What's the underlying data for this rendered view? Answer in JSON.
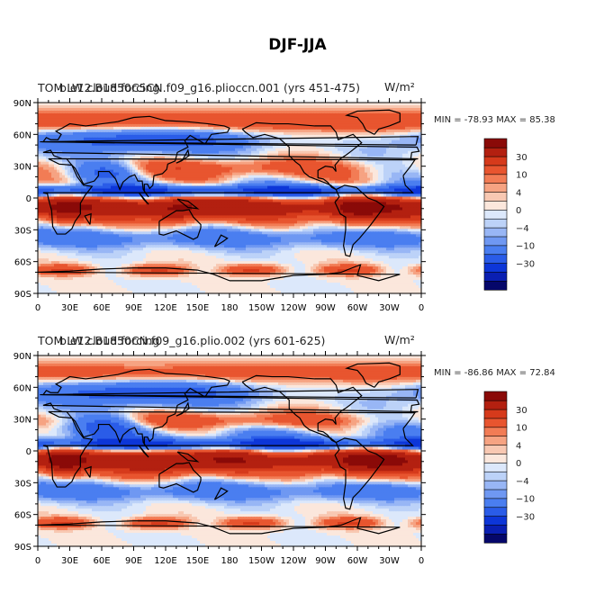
{
  "figure": {
    "title": "DJF-JJA"
  },
  "chart_data": [
    {
      "type": "heatmap",
      "title_left": "TOM LW cloud forcing",
      "title_center": "b.e12.B1850C5CN.f09_g16.plioccn.001 (yrs 451-475)",
      "units": "W/m²",
      "stats": {
        "label": "MIN = -78.93 MAX =  85.38",
        "min": -78.93,
        "max": 85.38
      },
      "colorbar": {
        "levels": [
          -70,
          -50,
          -30,
          -20,
          -10,
          -7,
          -4,
          -2,
          0,
          2,
          4,
          7,
          10,
          20,
          30,
          50,
          70
        ],
        "tick_labels": [
          "30",
          "10",
          "4",
          "0",
          "-4",
          "-10",
          "-30"
        ],
        "colors": [
          "#05076a",
          "#0a1fb2",
          "#0d36d8",
          "#2a5ce8",
          "#4a7ef0",
          "#6f98f2",
          "#98b6f5",
          "#bcd2f8",
          "#dce8fb",
          "#fbe7dc",
          "#f8c8b2",
          "#f6a382",
          "#f27c55",
          "#e8552f",
          "#d63a1b",
          "#b32010",
          "#8a0a08"
        ]
      },
      "lat_ticks": [
        "90N",
        "60N",
        "30N",
        "0",
        "30S",
        "60S",
        "90S"
      ],
      "lon_ticks": [
        "0",
        "30E",
        "60E",
        "90E",
        "120E",
        "150E",
        "180",
        "150W",
        "120W",
        "90W",
        "60W",
        "30W",
        "0"
      ]
    },
    {
      "type": "heatmap",
      "title_left": "TOM LW cloud forcing",
      "title_center": "b.e12.B1850CN.f09_g16.plio.002 (yrs 601-625)",
      "units": "W/m²",
      "stats": {
        "label": "MIN = -86.86 MAX =  72.84",
        "min": -86.86,
        "max": 72.84
      },
      "colorbar": {
        "levels": [
          -70,
          -50,
          -30,
          -20,
          -10,
          -7,
          -4,
          -2,
          0,
          2,
          4,
          7,
          10,
          20,
          30,
          50,
          70
        ],
        "tick_labels": [
          "30",
          "10",
          "4",
          "0",
          "-4",
          "-10",
          "-30"
        ],
        "colors": [
          "#05076a",
          "#0a1fb2",
          "#0d36d8",
          "#2a5ce8",
          "#4a7ef0",
          "#6f98f2",
          "#98b6f5",
          "#bcd2f8",
          "#dce8fb",
          "#fbe7dc",
          "#f8c8b2",
          "#f6a382",
          "#f27c55",
          "#e8552f",
          "#d63a1b",
          "#b32010",
          "#8a0a08"
        ]
      },
      "lat_ticks": [
        "90N",
        "60N",
        "30N",
        "0",
        "30S",
        "60S",
        "90S"
      ],
      "lon_ticks": [
        "0",
        "30E",
        "60E",
        "90E",
        "120E",
        "150E",
        "180",
        "150W",
        "120W",
        "90W",
        "60W",
        "30W",
        "0"
      ]
    }
  ]
}
